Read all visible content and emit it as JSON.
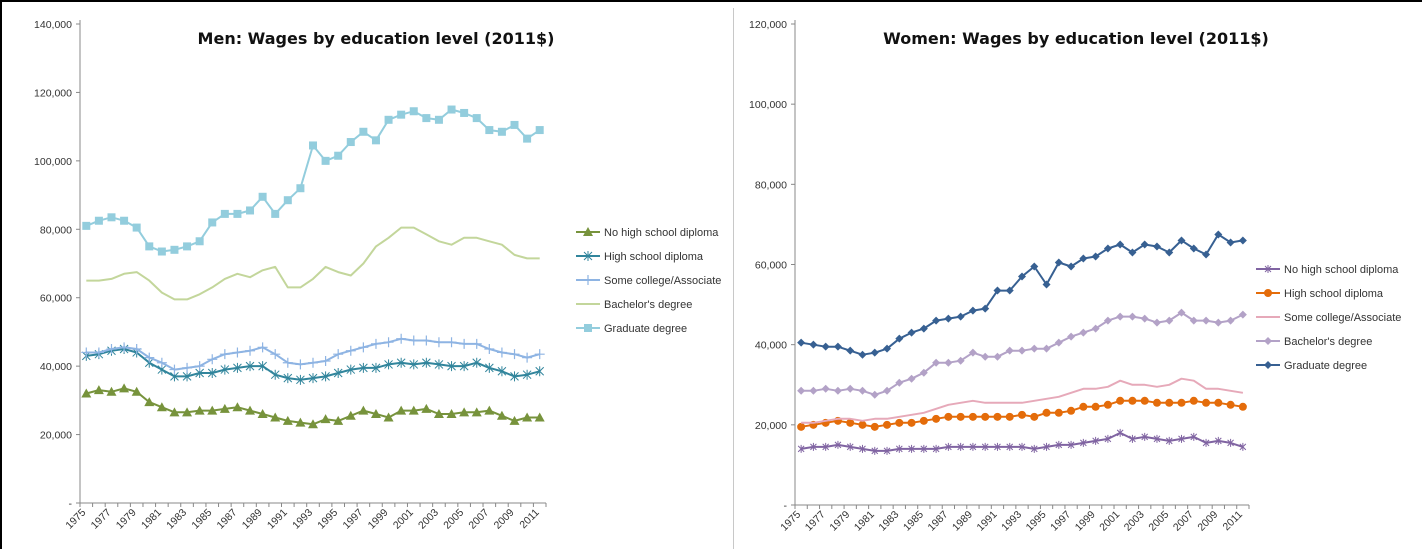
{
  "chart_data": [
    {
      "type": "line",
      "title": "Men: Wages by education level (2011$)",
      "xlabel": "",
      "ylabel": "",
      "ylim": [
        0,
        140000
      ],
      "yticks": [
        0,
        20000,
        40000,
        60000,
        80000,
        100000,
        120000,
        140000
      ],
      "ytick_labels": [
        "-",
        "20,000",
        "40,000",
        "60,000",
        "80,000",
        "100,000",
        "120,000",
        "140,000"
      ],
      "x": [
        1975,
        1976,
        1977,
        1978,
        1979,
        1980,
        1981,
        1982,
        1983,
        1984,
        1985,
        1986,
        1987,
        1988,
        1989,
        1990,
        1991,
        1992,
        1993,
        1994,
        1995,
        1996,
        1997,
        1998,
        1999,
        2000,
        2001,
        2002,
        2003,
        2004,
        2005,
        2006,
        2007,
        2008,
        2009,
        2010,
        2011
      ],
      "xtick_labels": [
        "1975",
        "1977",
        "1979",
        "1981",
        "1983",
        "1985",
        "1987",
        "1989",
        "1991",
        "1993",
        "1995",
        "1997",
        "1999",
        "2001",
        "2003",
        "2005",
        "2007",
        "2009",
        "2011"
      ],
      "grid": false,
      "legend_position": "right",
      "series": [
        {
          "name": "No high school diploma",
          "color": "#77933c",
          "marker": "triangle",
          "values": [
            32000,
            33000,
            32500,
            33500,
            32500,
            29500,
            28000,
            26500,
            26500,
            27000,
            27000,
            27500,
            28000,
            27000,
            26000,
            25000,
            24000,
            23500,
            23000,
            24500,
            24000,
            25500,
            27000,
            26000,
            25000,
            27000,
            27000,
            27500,
            26000,
            26000,
            26500,
            26500,
            27000,
            25500,
            24000,
            25000,
            25000
          ]
        },
        {
          "name": "High school diploma",
          "color": "#31859c",
          "marker": "star",
          "values": [
            43000,
            43500,
            44500,
            45000,
            44000,
            41000,
            39000,
            37000,
            37000,
            38000,
            38000,
            39000,
            39500,
            40000,
            40000,
            37500,
            36500,
            36000,
            36500,
            37000,
            38000,
            39000,
            39500,
            39500,
            40500,
            41000,
            40500,
            41000,
            40500,
            40000,
            40000,
            41000,
            39500,
            38500,
            37000,
            37500,
            38500
          ]
        },
        {
          "name": "Some college/Associate",
          "color": "#8eb4e3",
          "marker": "plus",
          "values": [
            44000,
            44000,
            45000,
            45500,
            45000,
            42500,
            41000,
            39000,
            39500,
            40000,
            42000,
            43500,
            44000,
            44500,
            45500,
            43500,
            41000,
            40500,
            41000,
            41500,
            43500,
            44500,
            45500,
            46500,
            47000,
            48000,
            47500,
            47500,
            47000,
            47000,
            46500,
            46500,
            45000,
            44000,
            43500,
            42500,
            43500
          ]
        },
        {
          "name": "Bachelor's degree",
          "color": "#c3d69b",
          "marker": "none",
          "values": [
            65000,
            65000,
            65500,
            67000,
            67500,
            65000,
            61500,
            59500,
            59500,
            61000,
            63000,
            65500,
            67000,
            66000,
            68000,
            69000,
            63000,
            63000,
            65500,
            69000,
            67500,
            66500,
            70000,
            75000,
            77500,
            80500,
            80500,
            78500,
            76500,
            75500,
            77500,
            77500,
            76500,
            75500,
            72500,
            71500,
            71500
          ]
        },
        {
          "name": "Graduate degree",
          "color": "#93cddd",
          "marker": "square",
          "values": [
            81000,
            82500,
            83500,
            82500,
            80500,
            75000,
            73500,
            74000,
            75000,
            76500,
            82000,
            84500,
            84500,
            85500,
            89500,
            84500,
            88500,
            92000,
            104500,
            100000,
            101500,
            105500,
            108500,
            106000,
            112000,
            113500,
            114500,
            112500,
            112000,
            115000,
            114000,
            112500,
            109000,
            108500,
            110500,
            106500,
            109000
          ]
        }
      ]
    },
    {
      "type": "line",
      "title": "Women: Wages by education level (2011$)",
      "xlabel": "",
      "ylabel": "",
      "ylim": [
        0,
        120000
      ],
      "yticks": [
        0,
        20000,
        40000,
        60000,
        80000,
        100000,
        120000
      ],
      "ytick_labels": [
        "-",
        "20,000",
        "40,000",
        "60,000",
        "80,000",
        "100,000",
        "120,000"
      ],
      "x": [
        1975,
        1976,
        1977,
        1978,
        1979,
        1980,
        1981,
        1982,
        1983,
        1984,
        1985,
        1986,
        1987,
        1988,
        1989,
        1990,
        1991,
        1992,
        1993,
        1994,
        1995,
        1996,
        1997,
        1998,
        1999,
        2000,
        2001,
        2002,
        2003,
        2004,
        2005,
        2006,
        2007,
        2008,
        2009,
        2010,
        2011
      ],
      "xtick_labels": [
        "1975",
        "1977",
        "1979",
        "1981",
        "1983",
        "1985",
        "1987",
        "1989",
        "1991",
        "1993",
        "1995",
        "1997",
        "1999",
        "2001",
        "2003",
        "2005",
        "2007",
        "2009",
        "2011"
      ],
      "grid": false,
      "legend_position": "right",
      "series": [
        {
          "name": "No high school diploma",
          "color": "#8064a2",
          "marker": "star",
          "values": [
            14000,
            14500,
            14500,
            15000,
            14500,
            14000,
            13500,
            13500,
            14000,
            14000,
            14000,
            14000,
            14500,
            14500,
            14500,
            14500,
            14500,
            14500,
            14500,
            14000,
            14500,
            15000,
            15000,
            15500,
            16000,
            16500,
            18000,
            16500,
            17000,
            16500,
            16000,
            16500,
            17000,
            15500,
            16000,
            15500,
            14500
          ]
        },
        {
          "name": "High school diploma",
          "color": "#e46c0a",
          "marker": "circle",
          "values": [
            19500,
            20000,
            20500,
            21000,
            20500,
            20000,
            19500,
            20000,
            20500,
            20500,
            21000,
            21500,
            22000,
            22000,
            22000,
            22000,
            22000,
            22000,
            22500,
            22000,
            23000,
            23000,
            23500,
            24500,
            24500,
            25000,
            26000,
            26000,
            26000,
            25500,
            25500,
            25500,
            26000,
            25500,
            25500,
            25000,
            24500
          ]
        },
        {
          "name": "Some college/Associate",
          "color": "#e6a9b9",
          "marker": "none",
          "values": [
            20500,
            20500,
            21000,
            21500,
            21500,
            21000,
            21500,
            21500,
            22000,
            22500,
            23000,
            24000,
            25000,
            25500,
            26000,
            25500,
            25500,
            25500,
            25500,
            26000,
            26500,
            27000,
            28000,
            29000,
            29000,
            29500,
            31000,
            30000,
            30000,
            29500,
            30000,
            31500,
            31000,
            29000,
            29000,
            28500,
            28000
          ]
        },
        {
          "name": "Bachelor's degree",
          "color": "#b3a2c7",
          "marker": "diamond",
          "values": [
            28500,
            28500,
            29000,
            28500,
            29000,
            28500,
            27500,
            28500,
            30500,
            31500,
            33000,
            35500,
            35500,
            36000,
            38000,
            37000,
            37000,
            38500,
            38500,
            39000,
            39000,
            40500,
            42000,
            43000,
            44000,
            46000,
            47000,
            47000,
            46500,
            45500,
            46000,
            48000,
            46000,
            46000,
            45500,
            46000,
            47500
          ]
        },
        {
          "name": "Graduate degree",
          "color": "#376092",
          "marker": "diamond",
          "values": [
            40500,
            40000,
            39500,
            39500,
            38500,
            37500,
            38000,
            39000,
            41500,
            43000,
            44000,
            46000,
            46500,
            47000,
            48500,
            49000,
            53500,
            53500,
            57000,
            59500,
            55000,
            60500,
            59500,
            61500,
            62000,
            64000,
            65000,
            63000,
            65000,
            64500,
            63000,
            66000,
            64000,
            62500,
            67500,
            65500,
            66000
          ]
        }
      ]
    }
  ]
}
